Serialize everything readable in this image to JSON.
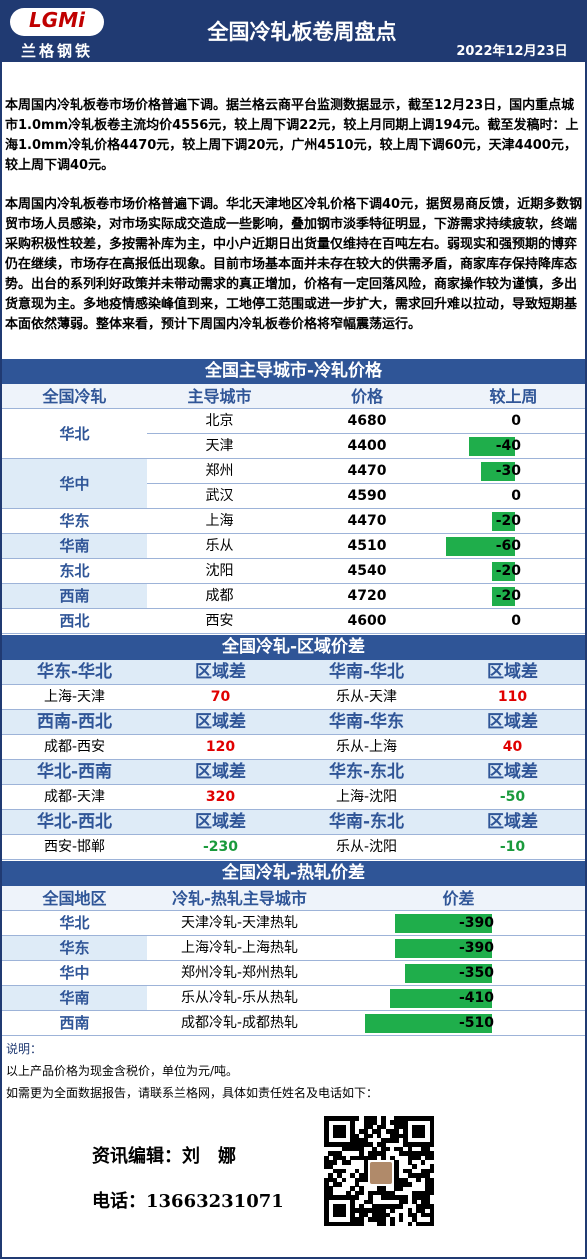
{
  "header": {
    "logo": "LGMi",
    "brand": "兰格钢铁",
    "title": "全国冷轧板卷周盘点",
    "date": "2022年12月23日"
  },
  "summary": [
    "本周国内冷轧板卷市场价格普遍下调。据兰格云商平台监测数据显示，截至12月23日，国内重点城市1.0mm冷轧板卷主流均价4556元，较上周下调22元，较上月同期上调194元。截至发稿时：上海1.0mm冷轧价格4470元，较上周下调20元，广州4510元，较上周下调60元，天津4400元，较上周下调40元。",
    "本周国内冷轧板卷市场价格普遍下调。华北天津地区冷轧价格下调40元，据贸易商反馈，近期多数钢贸市场人员感染，对市场实际成交造成一些影响，叠加钢市淡季特征明显，下游需求持续疲软，终端采购积极性较差，多按需补库为主，中小户近期日出货量仅维持在百吨左右。弱现实和强预期的博弈仍在继续，市场存在高报低出现象。目前市场基本面并未存在较大的供需矛盾，商家库存保持降库态势。出台的系列利好政策并未带动需求的真正增加，价格有一定回落风险，商家操作较为谨慎，多出货意现为主。多地疫情感染峰值到来，工地停工范围或进一步扩大，需求回升难以拉动，导致短期基本面依然薄弱。整体来看，预计下周国内冷轧板卷价格将窄幅震荡运行。"
  ],
  "city_prices": {
    "title": "全国主导城市-冷轧价格",
    "columns": [
      "全国冷轧",
      "主导城市",
      "价格",
      "较上周"
    ],
    "groups": [
      {
        "region": "华北",
        "rows": [
          {
            "city": "北京",
            "price": 4680,
            "change": 0
          },
          {
            "city": "天津",
            "price": 4400,
            "change": -40
          }
        ]
      },
      {
        "region": "华中",
        "rows": [
          {
            "city": "郑州",
            "price": 4470,
            "change": -30
          },
          {
            "city": "武汉",
            "price": 4590,
            "change": 0
          }
        ]
      },
      {
        "region": "华东",
        "rows": [
          {
            "city": "上海",
            "price": 4470,
            "change": -20
          }
        ]
      },
      {
        "region": "华南",
        "rows": [
          {
            "city": "乐从",
            "price": 4510,
            "change": -60
          }
        ]
      },
      {
        "region": "东北",
        "rows": [
          {
            "city": "沈阳",
            "price": 4540,
            "change": -20
          }
        ]
      },
      {
        "region": "西南",
        "rows": [
          {
            "city": "成都",
            "price": 4720,
            "change": -20
          }
        ]
      },
      {
        "region": "西北",
        "rows": [
          {
            "city": "西安",
            "price": 4600,
            "change": 0
          }
        ]
      }
    ]
  },
  "spreads": {
    "title": "全国冷轧-区域价差",
    "blocks": [
      {
        "pair": "华东-华北",
        "label": "区域差",
        "cities": "上海-天津",
        "value": 70
      },
      {
        "pair": "华南-华北",
        "label": "区域差",
        "cities": "乐从-天津",
        "value": 110
      },
      {
        "pair": "西南-西北",
        "label": "区域差",
        "cities": "成都-西安",
        "value": 120
      },
      {
        "pair": "华南-华东",
        "label": "区域差",
        "cities": "乐从-上海",
        "value": 40
      },
      {
        "pair": "华北-西南",
        "label": "区域差",
        "cities": "成都-天津",
        "value": 320
      },
      {
        "pair": "华东-东北",
        "label": "区域差",
        "cities": "上海-沈阳",
        "value": -50
      },
      {
        "pair": "华北-西北",
        "label": "区域差",
        "cities": "西安-邯郸",
        "value": -230
      },
      {
        "pair": "华南-东北",
        "label": "区域差",
        "cities": "乐从-沈阳",
        "value": -10
      }
    ]
  },
  "hot_cold": {
    "title": "全国冷轧-热轧价差",
    "columns": [
      "全国地区",
      "冷轧-热轧主导城市",
      "价差"
    ],
    "rows": [
      {
        "region": "华北",
        "cities": "天津冷轧-天津热轧",
        "value": -390
      },
      {
        "region": "华东",
        "cities": "上海冷轧-上海热轧",
        "value": -390
      },
      {
        "region": "华中",
        "cities": "郑州冷轧-郑州热轧",
        "value": -350
      },
      {
        "region": "华南",
        "cities": "乐从冷轧-乐从热轧",
        "value": -410
      },
      {
        "region": "西南",
        "cities": "成都冷轧-成都热轧",
        "value": -510
      }
    ]
  },
  "footer": {
    "note_label": "说明：",
    "notes": [
      "以上产品价格为现金含税价，单位为元/吨。",
      "如需更为全面数据报告，请联系兰格网，具体如责任姓名及电话如下："
    ],
    "editor": "资讯编辑：刘　娜",
    "phone": "电话：13663231071"
  }
}
